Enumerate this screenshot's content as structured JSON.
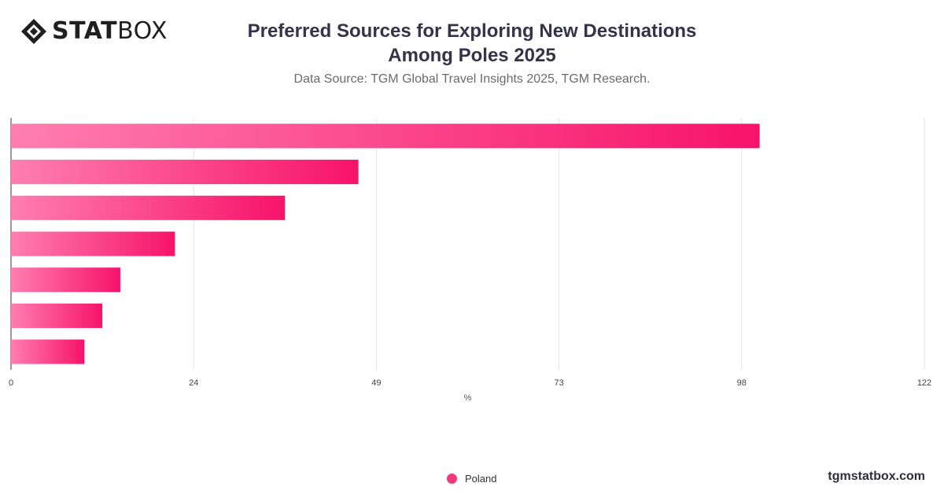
{
  "brand": {
    "logo_bold": "STAT",
    "logo_light": "BOX",
    "website": "tgmstatbox.com"
  },
  "header": {
    "title_line1": "Preferred Sources for Exploring New Destinations",
    "title_line2": "Among Poles 2025",
    "subtitle": "Data Source: TGM Global Travel Insights 2025, TGM Research."
  },
  "colors": {
    "bar_start": "#ff7eb0",
    "bar_end": "#f7136a",
    "legend": "#ef3b7a",
    "grid": "#e3e3e3"
  },
  "chart_data": {
    "type": "bar",
    "orientation": "horizontal",
    "categories": [
      "",
      "",
      "",
      "",
      "",
      "",
      ""
    ],
    "series": [
      {
        "name": "Poland",
        "values": [
          100,
          46.4,
          36.6,
          21.9,
          14.6,
          12.2,
          9.8
        ]
      }
    ],
    "xlabel": "%",
    "xlim": [
      0,
      122
    ],
    "xticks": [
      "0",
      "24",
      "49",
      "73",
      "98",
      "122"
    ],
    "xtick_values": [
      0,
      24.4,
      48.8,
      73.2,
      97.6,
      122
    ],
    "grid": true,
    "legend_position": "bottom-center"
  }
}
